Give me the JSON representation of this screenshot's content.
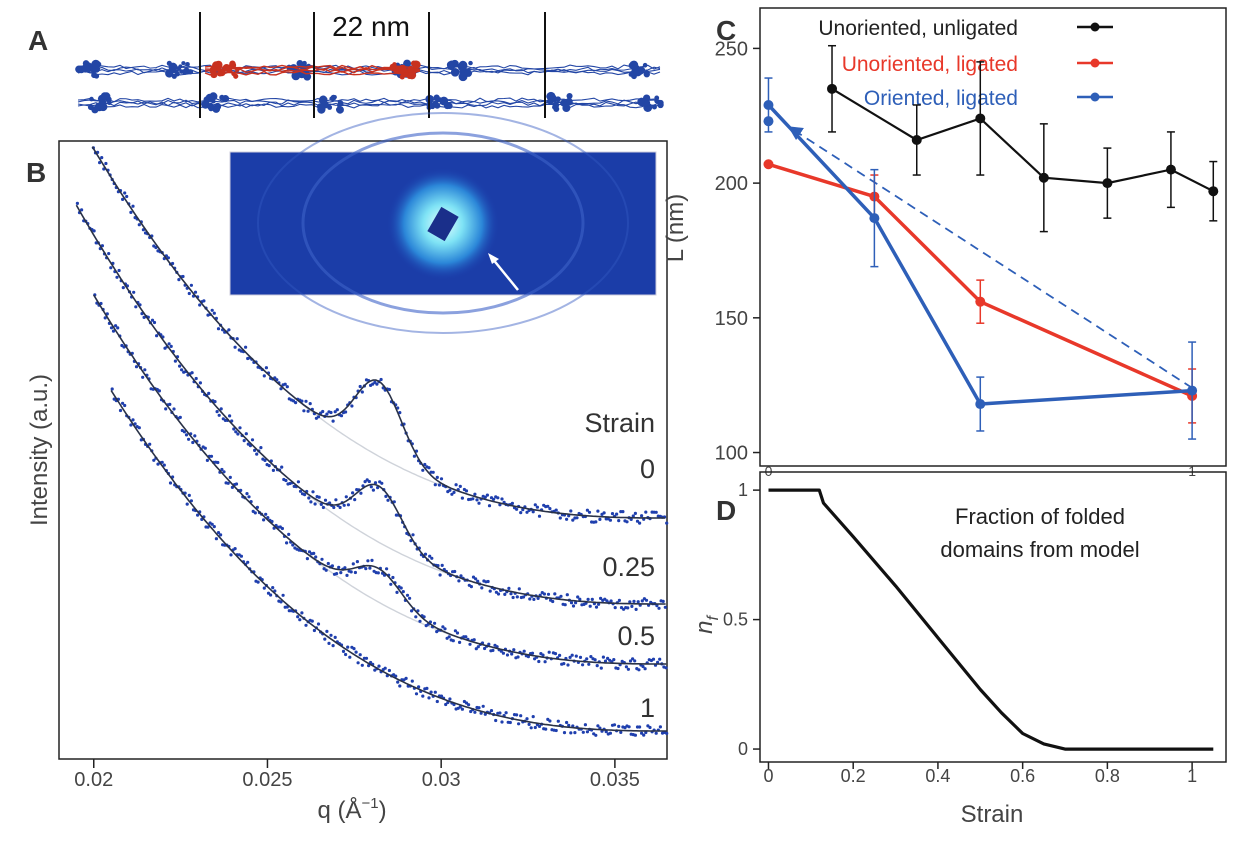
{
  "panels": {
    "A": {
      "label": "A",
      "scale_label": "22 nm"
    },
    "B": {
      "label": "B",
      "legend_title": "Strain"
    },
    "C": {
      "label": "C"
    },
    "D": {
      "label": "D",
      "annotation_line1": "Fraction of folded",
      "annotation_line2": "domains from model"
    }
  },
  "colors": {
    "black": "#111111",
    "red": "#e8382a",
    "blue": "#2e5fb8",
    "dots": "#1f3fae",
    "guide": "#cfd3da",
    "protein_blue": "#2346a5",
    "protein_red": "#c8311f"
  },
  "chart_data": [
    {
      "panel": "B",
      "type": "scatter",
      "xlabel": "q (Å",
      "xlabel_sup": "−1",
      "xlabel_close": ")",
      "ylabel": "Intensity (a.u.)",
      "xlim": [
        0.019,
        0.0365
      ],
      "x_ticks": [
        0.02,
        0.025,
        0.03,
        0.035
      ],
      "x_tick_labels": [
        "0.02",
        "0.025",
        "0.03",
        "0.035"
      ],
      "series": [
        {
          "name": "0",
          "offset": 3.1,
          "peak": 1.0
        },
        {
          "name": "0.25",
          "offset": 2.3,
          "peak": 0.75
        },
        {
          "name": "0.5",
          "offset": 1.6,
          "peak": 0.45
        },
        {
          "name": "1",
          "offset": 1.0,
          "peak": 0.0
        }
      ],
      "peak_q": 0.0282
    },
    {
      "panel": "C",
      "type": "line",
      "ylabel": "L (nm)",
      "xlim": [
        -0.02,
        1.08
      ],
      "ylim": [
        95,
        265
      ],
      "y_ticks": [
        100,
        150,
        200,
        250
      ],
      "y_tick_labels": [
        "100",
        "150",
        "200",
        "250"
      ],
      "x_tick_labels": [
        "0",
        "1"
      ],
      "series": [
        {
          "name": "Unoriented, unligated",
          "color": "black",
          "x": [
            0.15,
            0.35,
            0.5,
            0.65,
            0.8,
            0.95,
            1.05
          ],
          "y": [
            235,
            216,
            224,
            202,
            200,
            205,
            197
          ],
          "err": [
            16,
            13,
            21,
            20,
            13,
            14,
            11
          ]
        },
        {
          "name": "Unoriented, ligated",
          "color": "red",
          "x": [
            0,
            0.25,
            0.5,
            1.0
          ],
          "y": [
            207,
            195,
            156,
            121
          ],
          "err": [
            0,
            8,
            8,
            10
          ]
        },
        {
          "name": "Oriented, ligated",
          "color": "blue",
          "x": [
            0,
            0.25,
            0.5,
            1.0
          ],
          "y": [
            229,
            187,
            118,
            123
          ],
          "err": [
            10,
            18,
            10,
            18
          ]
        }
      ],
      "extra_point": {
        "x": 0,
        "y": 223
      },
      "dashed_line": {
        "x": [
          0.02,
          1.0
        ],
        "y": [
          220,
          124
        ]
      }
    },
    {
      "panel": "D",
      "type": "line",
      "xlabel": "Strain",
      "ylabel": "n",
      "ylabel_sub": "f",
      "xlim": [
        -0.02,
        1.08
      ],
      "ylim": [
        -0.05,
        1.07
      ],
      "x_ticks": [
        0,
        0.2,
        0.4,
        0.6,
        0.8,
        1
      ],
      "x_tick_labels": [
        "0",
        "0.2",
        "0.4",
        "0.6",
        "0.8",
        "1"
      ],
      "y_ticks": [
        0,
        0.5,
        1
      ],
      "y_tick_labels": [
        "0",
        "0.5",
        "1"
      ],
      "series": [
        {
          "name": "model",
          "x": [
            0,
            0.12,
            0.13,
            0.2,
            0.3,
            0.4,
            0.5,
            0.55,
            0.6,
            0.65,
            0.7,
            0.8,
            1.05
          ],
          "y": [
            1.0,
            1.0,
            0.95,
            0.82,
            0.63,
            0.43,
            0.23,
            0.14,
            0.06,
            0.02,
            0.0,
            0.0,
            0.0
          ]
        }
      ]
    }
  ]
}
